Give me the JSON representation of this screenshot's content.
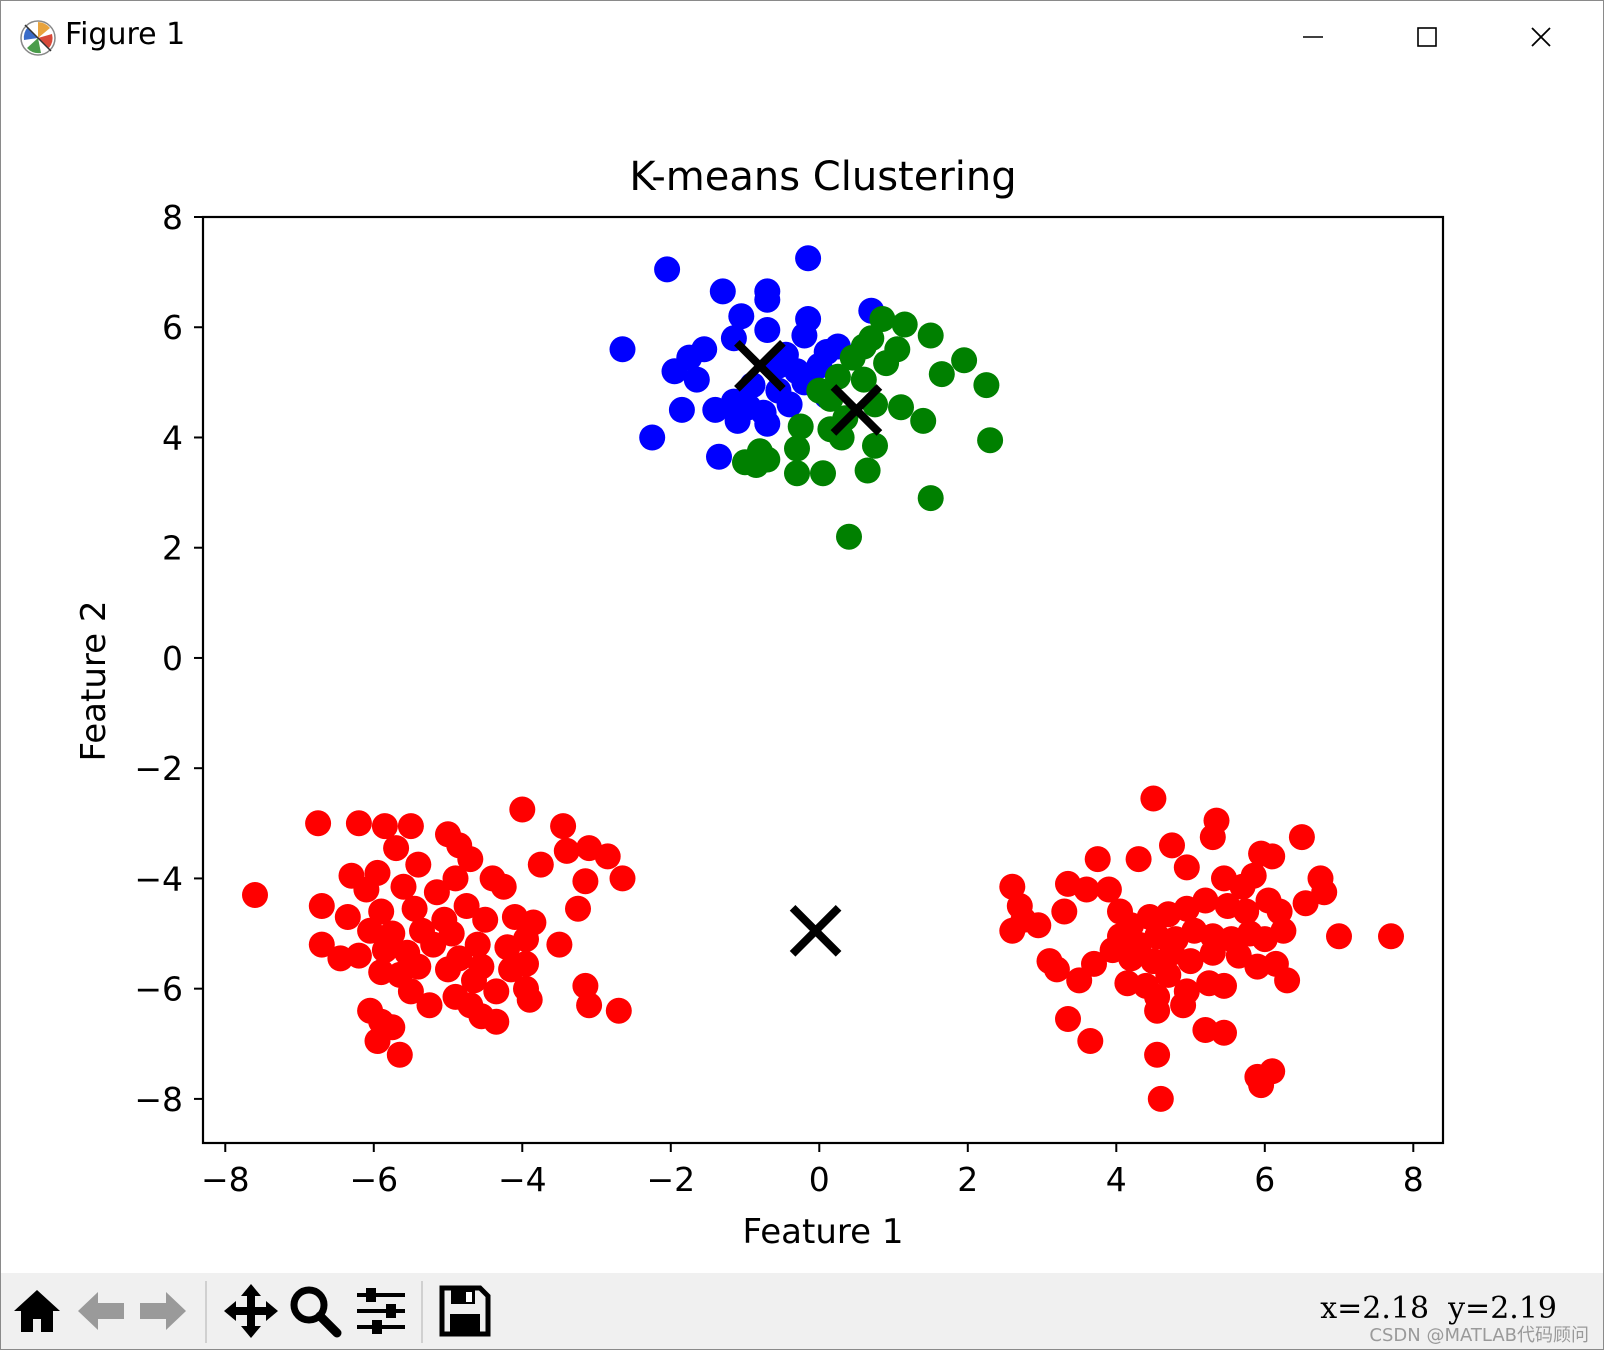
{
  "window": {
    "title": "Figure 1",
    "icon": "matplotlib-logo-icon",
    "controls": [
      "minimize-icon",
      "maximize-icon",
      "close-icon"
    ]
  },
  "toolbar": {
    "buttons": [
      "home-icon",
      "back-arrow-icon",
      "forward-arrow-icon",
      "pan-icon",
      "zoom-icon",
      "configure-subplots-icon",
      "save-icon"
    ],
    "coords": "x=2.18  y=2.19",
    "watermark": "CSDN @MATLAB代码顾问"
  },
  "chart_data": {
    "type": "scatter",
    "title": "K-means Clustering",
    "xlabel": "Feature 1",
    "ylabel": "Feature 2",
    "xlim": [
      -8.3,
      8.4
    ],
    "ylim": [
      -8.8,
      8.0
    ],
    "xticks": [
      -8,
      -6,
      -4,
      -2,
      0,
      2,
      4,
      6,
      8
    ],
    "yticks": [
      -8,
      -6,
      -4,
      -2,
      0,
      2,
      4,
      6,
      8
    ],
    "xtick_labels": [
      "−8",
      "−6",
      "−4",
      "−2",
      "0",
      "2",
      "4",
      "6",
      "8"
    ],
    "ytick_labels": [
      "−8",
      "−6",
      "−4",
      "−2",
      "0",
      "2",
      "4",
      "6",
      "8"
    ],
    "grid": false,
    "colors": {
      "cluster_blue": "#0000ff",
      "cluster_green": "#008000",
      "cluster_red": "#ff0000",
      "centroid": "#000000"
    },
    "series": [
      {
        "color": "#0000ff",
        "points": [
          [
            -2.05,
            7.05
          ],
          [
            -0.15,
            7.25
          ],
          [
            -1.3,
            6.65
          ],
          [
            -0.7,
            6.65
          ],
          [
            -0.7,
            6.5
          ],
          [
            -1.05,
            6.2
          ],
          [
            -0.15,
            6.15
          ],
          [
            -0.7,
            5.95
          ],
          [
            0.7,
            6.3
          ],
          [
            -2.65,
            5.6
          ],
          [
            -1.55,
            5.6
          ],
          [
            -1.75,
            5.45
          ],
          [
            -1.95,
            5.2
          ],
          [
            -1.65,
            5.05
          ],
          [
            -1.15,
            5.8
          ],
          [
            -0.2,
            5.85
          ],
          [
            -0.45,
            5.5
          ],
          [
            0.1,
            5.55
          ],
          [
            0.25,
            5.65
          ],
          [
            -0.55,
            5.3
          ],
          [
            -0.3,
            5.2
          ],
          [
            0.0,
            5.3
          ],
          [
            -0.9,
            4.95
          ],
          [
            -0.55,
            4.85
          ],
          [
            -1.85,
            4.5
          ],
          [
            -1.4,
            4.5
          ],
          [
            -1.15,
            4.65
          ],
          [
            -0.95,
            4.55
          ],
          [
            -0.75,
            4.45
          ],
          [
            -1.1,
            4.3
          ],
          [
            -0.7,
            4.25
          ],
          [
            -2.25,
            4.0
          ],
          [
            -1.35,
            3.65
          ],
          [
            -0.4,
            4.6
          ],
          [
            0.1,
            4.75
          ],
          [
            -0.2,
            5.0
          ]
        ]
      },
      {
        "color": "#008000",
        "points": [
          [
            0.85,
            6.15
          ],
          [
            1.15,
            6.05
          ],
          [
            1.5,
            5.85
          ],
          [
            0.6,
            5.65
          ],
          [
            1.05,
            5.6
          ],
          [
            0.45,
            5.45
          ],
          [
            0.9,
            5.35
          ],
          [
            1.65,
            5.15
          ],
          [
            1.95,
            5.4
          ],
          [
            2.25,
            4.95
          ],
          [
            0.25,
            5.1
          ],
          [
            0.6,
            5.05
          ],
          [
            0.0,
            4.85
          ],
          [
            0.15,
            4.7
          ],
          [
            0.75,
            4.6
          ],
          [
            1.1,
            4.55
          ],
          [
            1.4,
            4.3
          ],
          [
            0.35,
            4.35
          ],
          [
            0.15,
            4.15
          ],
          [
            -0.25,
            4.2
          ],
          [
            0.3,
            4.0
          ],
          [
            0.75,
            3.85
          ],
          [
            2.3,
            3.95
          ],
          [
            -0.3,
            3.8
          ],
          [
            -0.8,
            3.75
          ],
          [
            -0.7,
            3.6
          ],
          [
            -0.85,
            3.5
          ],
          [
            -1.0,
            3.55
          ],
          [
            -0.3,
            3.35
          ],
          [
            0.05,
            3.35
          ],
          [
            0.65,
            3.4
          ],
          [
            1.5,
            2.9
          ],
          [
            0.4,
            2.2
          ],
          [
            0.7,
            5.8
          ]
        ]
      },
      {
        "color": "#ff0000",
        "points": [
          [
            -6.75,
            -3.0
          ],
          [
            -6.2,
            -3.0
          ],
          [
            -5.85,
            -3.05
          ],
          [
            -5.5,
            -3.05
          ],
          [
            -4.0,
            -2.75
          ],
          [
            -5.0,
            -3.2
          ],
          [
            -4.85,
            -3.4
          ],
          [
            -4.7,
            -3.65
          ],
          [
            -3.45,
            -3.05
          ],
          [
            -3.4,
            -3.5
          ],
          [
            -3.1,
            -3.45
          ],
          [
            -2.85,
            -3.6
          ],
          [
            -2.65,
            -4.0
          ],
          [
            -3.75,
            -3.75
          ],
          [
            -5.7,
            -3.45
          ],
          [
            -5.4,
            -3.75
          ],
          [
            -6.3,
            -3.95
          ],
          [
            -6.1,
            -4.2
          ],
          [
            -5.95,
            -3.9
          ],
          [
            -5.6,
            -4.15
          ],
          [
            -5.15,
            -4.25
          ],
          [
            -4.9,
            -4.0
          ],
          [
            -4.4,
            -4.0
          ],
          [
            -4.25,
            -4.15
          ],
          [
            -3.15,
            -4.05
          ],
          [
            -3.25,
            -4.55
          ],
          [
            -7.6,
            -4.3
          ],
          [
            -6.7,
            -4.5
          ],
          [
            -6.35,
            -4.7
          ],
          [
            -5.9,
            -4.6
          ],
          [
            -5.45,
            -4.55
          ],
          [
            -5.05,
            -4.75
          ],
          [
            -4.75,
            -4.5
          ],
          [
            -4.5,
            -4.75
          ],
          [
            -4.1,
            -4.7
          ],
          [
            -3.85,
            -4.8
          ],
          [
            -6.05,
            -4.95
          ],
          [
            -5.75,
            -5.0
          ],
          [
            -5.35,
            -4.95
          ],
          [
            -4.95,
            -5.0
          ],
          [
            -4.6,
            -5.2
          ],
          [
            -4.2,
            -5.25
          ],
          [
            -3.95,
            -5.1
          ],
          [
            -3.5,
            -5.2
          ],
          [
            -6.7,
            -5.2
          ],
          [
            -6.45,
            -5.45
          ],
          [
            -6.2,
            -5.4
          ],
          [
            -5.85,
            -5.3
          ],
          [
            -5.55,
            -5.35
          ],
          [
            -5.2,
            -5.2
          ],
          [
            -4.85,
            -5.45
          ],
          [
            -4.55,
            -5.6
          ],
          [
            -4.15,
            -5.65
          ],
          [
            -3.95,
            -5.55
          ],
          [
            -5.9,
            -5.7
          ],
          [
            -5.65,
            -5.75
          ],
          [
            -5.4,
            -5.6
          ],
          [
            -5.0,
            -5.65
          ],
          [
            -4.65,
            -5.85
          ],
          [
            -4.35,
            -6.05
          ],
          [
            -3.95,
            -6.0
          ],
          [
            -3.15,
            -5.95
          ],
          [
            -5.5,
            -6.05
          ],
          [
            -5.25,
            -6.3
          ],
          [
            -4.9,
            -6.15
          ],
          [
            -4.7,
            -6.3
          ],
          [
            -3.9,
            -6.2
          ],
          [
            -3.1,
            -6.3
          ],
          [
            -2.7,
            -6.4
          ],
          [
            -6.05,
            -6.4
          ],
          [
            -5.9,
            -6.6
          ],
          [
            -5.75,
            -6.7
          ],
          [
            -4.55,
            -6.5
          ],
          [
            -4.35,
            -6.6
          ],
          [
            -5.95,
            -6.95
          ],
          [
            -5.65,
            -7.2
          ],
          [
            2.6,
            -4.15
          ],
          [
            2.7,
            -4.5
          ],
          [
            2.75,
            -4.75
          ],
          [
            2.6,
            -4.95
          ],
          [
            2.95,
            -4.85
          ],
          [
            3.3,
            -4.6
          ],
          [
            3.35,
            -4.1
          ],
          [
            3.6,
            -4.2
          ],
          [
            3.75,
            -3.65
          ],
          [
            3.9,
            -4.2
          ],
          [
            4.3,
            -3.65
          ],
          [
            4.5,
            -2.55
          ],
          [
            4.75,
            -3.4
          ],
          [
            4.95,
            -3.8
          ],
          [
            5.3,
            -3.25
          ],
          [
            5.35,
            -2.95
          ],
          [
            5.45,
            -4.0
          ],
          [
            5.7,
            -4.15
          ],
          [
            5.85,
            -3.95
          ],
          [
            5.95,
            -3.55
          ],
          [
            6.1,
            -3.6
          ],
          [
            6.5,
            -3.25
          ],
          [
            6.75,
            -4.0
          ],
          [
            6.8,
            -4.25
          ],
          [
            6.55,
            -4.45
          ],
          [
            7.0,
            -5.05
          ],
          [
            7.7,
            -5.05
          ],
          [
            3.1,
            -5.5
          ],
          [
            3.2,
            -5.65
          ],
          [
            3.5,
            -5.85
          ],
          [
            3.7,
            -5.55
          ],
          [
            3.95,
            -5.3
          ],
          [
            4.05,
            -4.6
          ],
          [
            4.2,
            -4.85
          ],
          [
            4.45,
            -4.7
          ],
          [
            4.7,
            -4.65
          ],
          [
            4.95,
            -4.55
          ],
          [
            5.2,
            -4.4
          ],
          [
            5.5,
            -4.5
          ],
          [
            5.75,
            -4.6
          ],
          [
            6.05,
            -4.4
          ],
          [
            6.2,
            -4.6
          ],
          [
            4.05,
            -5.05
          ],
          [
            4.3,
            -5.2
          ],
          [
            4.55,
            -5.05
          ],
          [
            4.8,
            -5.1
          ],
          [
            5.05,
            -4.95
          ],
          [
            5.3,
            -5.05
          ],
          [
            5.55,
            -5.1
          ],
          [
            5.8,
            -5.0
          ],
          [
            6.0,
            -5.1
          ],
          [
            6.25,
            -4.95
          ],
          [
            4.2,
            -5.45
          ],
          [
            4.5,
            -5.5
          ],
          [
            4.75,
            -5.35
          ],
          [
            5.0,
            -5.5
          ],
          [
            5.3,
            -5.35
          ],
          [
            5.65,
            -5.4
          ],
          [
            5.9,
            -5.6
          ],
          [
            6.15,
            -5.55
          ],
          [
            6.3,
            -5.85
          ],
          [
            4.15,
            -5.9
          ],
          [
            4.4,
            -5.95
          ],
          [
            4.7,
            -5.75
          ],
          [
            4.95,
            -6.05
          ],
          [
            5.25,
            -5.9
          ],
          [
            5.45,
            -5.95
          ],
          [
            4.55,
            -6.15
          ],
          [
            4.55,
            -6.4
          ],
          [
            4.9,
            -6.3
          ],
          [
            3.35,
            -6.55
          ],
          [
            3.65,
            -6.95
          ],
          [
            5.2,
            -6.75
          ],
          [
            5.45,
            -6.8
          ],
          [
            4.55,
            -7.2
          ],
          [
            5.9,
            -7.6
          ],
          [
            6.1,
            -7.5
          ],
          [
            5.95,
            -7.75
          ],
          [
            4.6,
            -8.0
          ]
        ]
      }
    ],
    "centroids": [
      [
        -0.8,
        5.3
      ],
      [
        0.5,
        4.5
      ],
      [
        -0.05,
        -4.95
      ]
    ]
  }
}
